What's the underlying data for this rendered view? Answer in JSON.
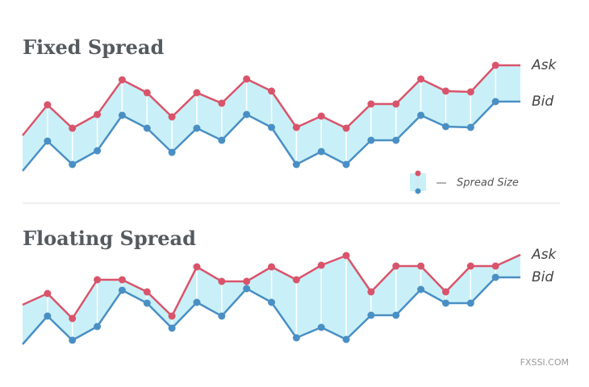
{
  "chart_data": [
    {
      "type": "line",
      "title": "Fixed Spread",
      "categories": [
        null,
        null,
        null,
        null,
        null,
        null,
        null,
        null,
        null,
        null,
        null,
        null,
        null,
        null,
        null,
        null,
        null,
        null,
        null,
        null,
        null
      ],
      "series": [
        {
          "name": "Ask",
          "color": "#d9546a",
          "values": [
            52,
            90,
            61,
            78,
            121,
            105,
            75,
            105,
            92,
            122,
            107,
            62,
            76,
            61,
            91,
            91,
            122,
            107,
            106,
            139,
            139
          ]
        },
        {
          "name": "Bid",
          "color": "#4a8fc4",
          "values": [
            8,
            45,
            16,
            33,
            77,
            61,
            31,
            61,
            46,
            78,
            62,
            16,
            32,
            16,
            46,
            46,
            77,
            63,
            62,
            94,
            94
          ]
        }
      ],
      "ylim": [
        0,
        150
      ],
      "fill_color": "#c9f0f8",
      "legend": "Spread Size"
    },
    {
      "type": "line",
      "title": "Floating Spread",
      "categories": [
        null,
        null,
        null,
        null,
        null,
        null,
        null,
        null,
        null,
        null,
        null,
        null,
        null,
        null,
        null,
        null,
        null,
        null,
        null,
        null,
        null
      ],
      "series": [
        {
          "name": "Ask",
          "color": "#d9546a",
          "values": [
            57,
            71,
            40,
            88,
            88,
            73,
            43,
            104,
            86,
            86,
            104,
            88,
            106,
            118,
            73,
            105,
            105,
            73,
            105,
            105,
            119
          ]
        },
        {
          "name": "Bid",
          "color": "#4a8fc4",
          "values": [
            8,
            43,
            13,
            30,
            75,
            59,
            28,
            60,
            43,
            77,
            60,
            16,
            29,
            14,
            44,
            44,
            76,
            59,
            59,
            91,
            91
          ]
        }
      ],
      "ylim": [
        0,
        150
      ],
      "fill_color": "#c9f0f8"
    }
  ],
  "watermark": "FXSSI.COM"
}
